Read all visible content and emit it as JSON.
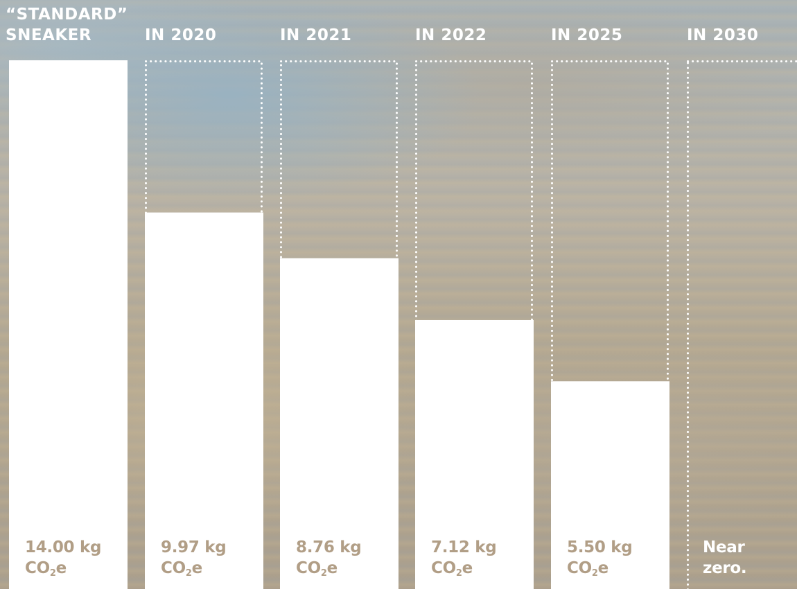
{
  "chart_data": {
    "type": "bar",
    "categories": [
      [
        "“STANDARD”",
        "SNEAKER"
      ],
      [
        "IN 2020"
      ],
      [
        "IN 2021"
      ],
      [
        "IN 2022"
      ],
      [
        "IN 2025"
      ],
      [
        "IN 2030"
      ]
    ],
    "values": [
      14.0,
      9.97,
      8.76,
      7.12,
      5.5,
      0
    ],
    "baseline_outline": true,
    "value_labels": [
      {
        "number": "14.00 kg",
        "unit_main": "CO",
        "unit_sub": "2",
        "unit_tail": "e"
      },
      {
        "number": "9.97 kg",
        "unit_main": "CO",
        "unit_sub": "2",
        "unit_tail": "e"
      },
      {
        "number": "8.76 kg",
        "unit_main": "CO",
        "unit_sub": "2",
        "unit_tail": "e"
      },
      {
        "number": "7.12 kg",
        "unit_main": "CO",
        "unit_sub": "2",
        "unit_tail": "e"
      },
      {
        "number": "5.50 kg",
        "unit_main": "CO",
        "unit_sub": "2",
        "unit_tail": "e"
      },
      {
        "line1": "Near",
        "line2": "zero."
      }
    ],
    "ylim": [
      0,
      14.0
    ],
    "grid": false,
    "colors": {
      "bar": "#ffffff",
      "outline": "#ffffff",
      "value_text": "#b19e86"
    }
  }
}
